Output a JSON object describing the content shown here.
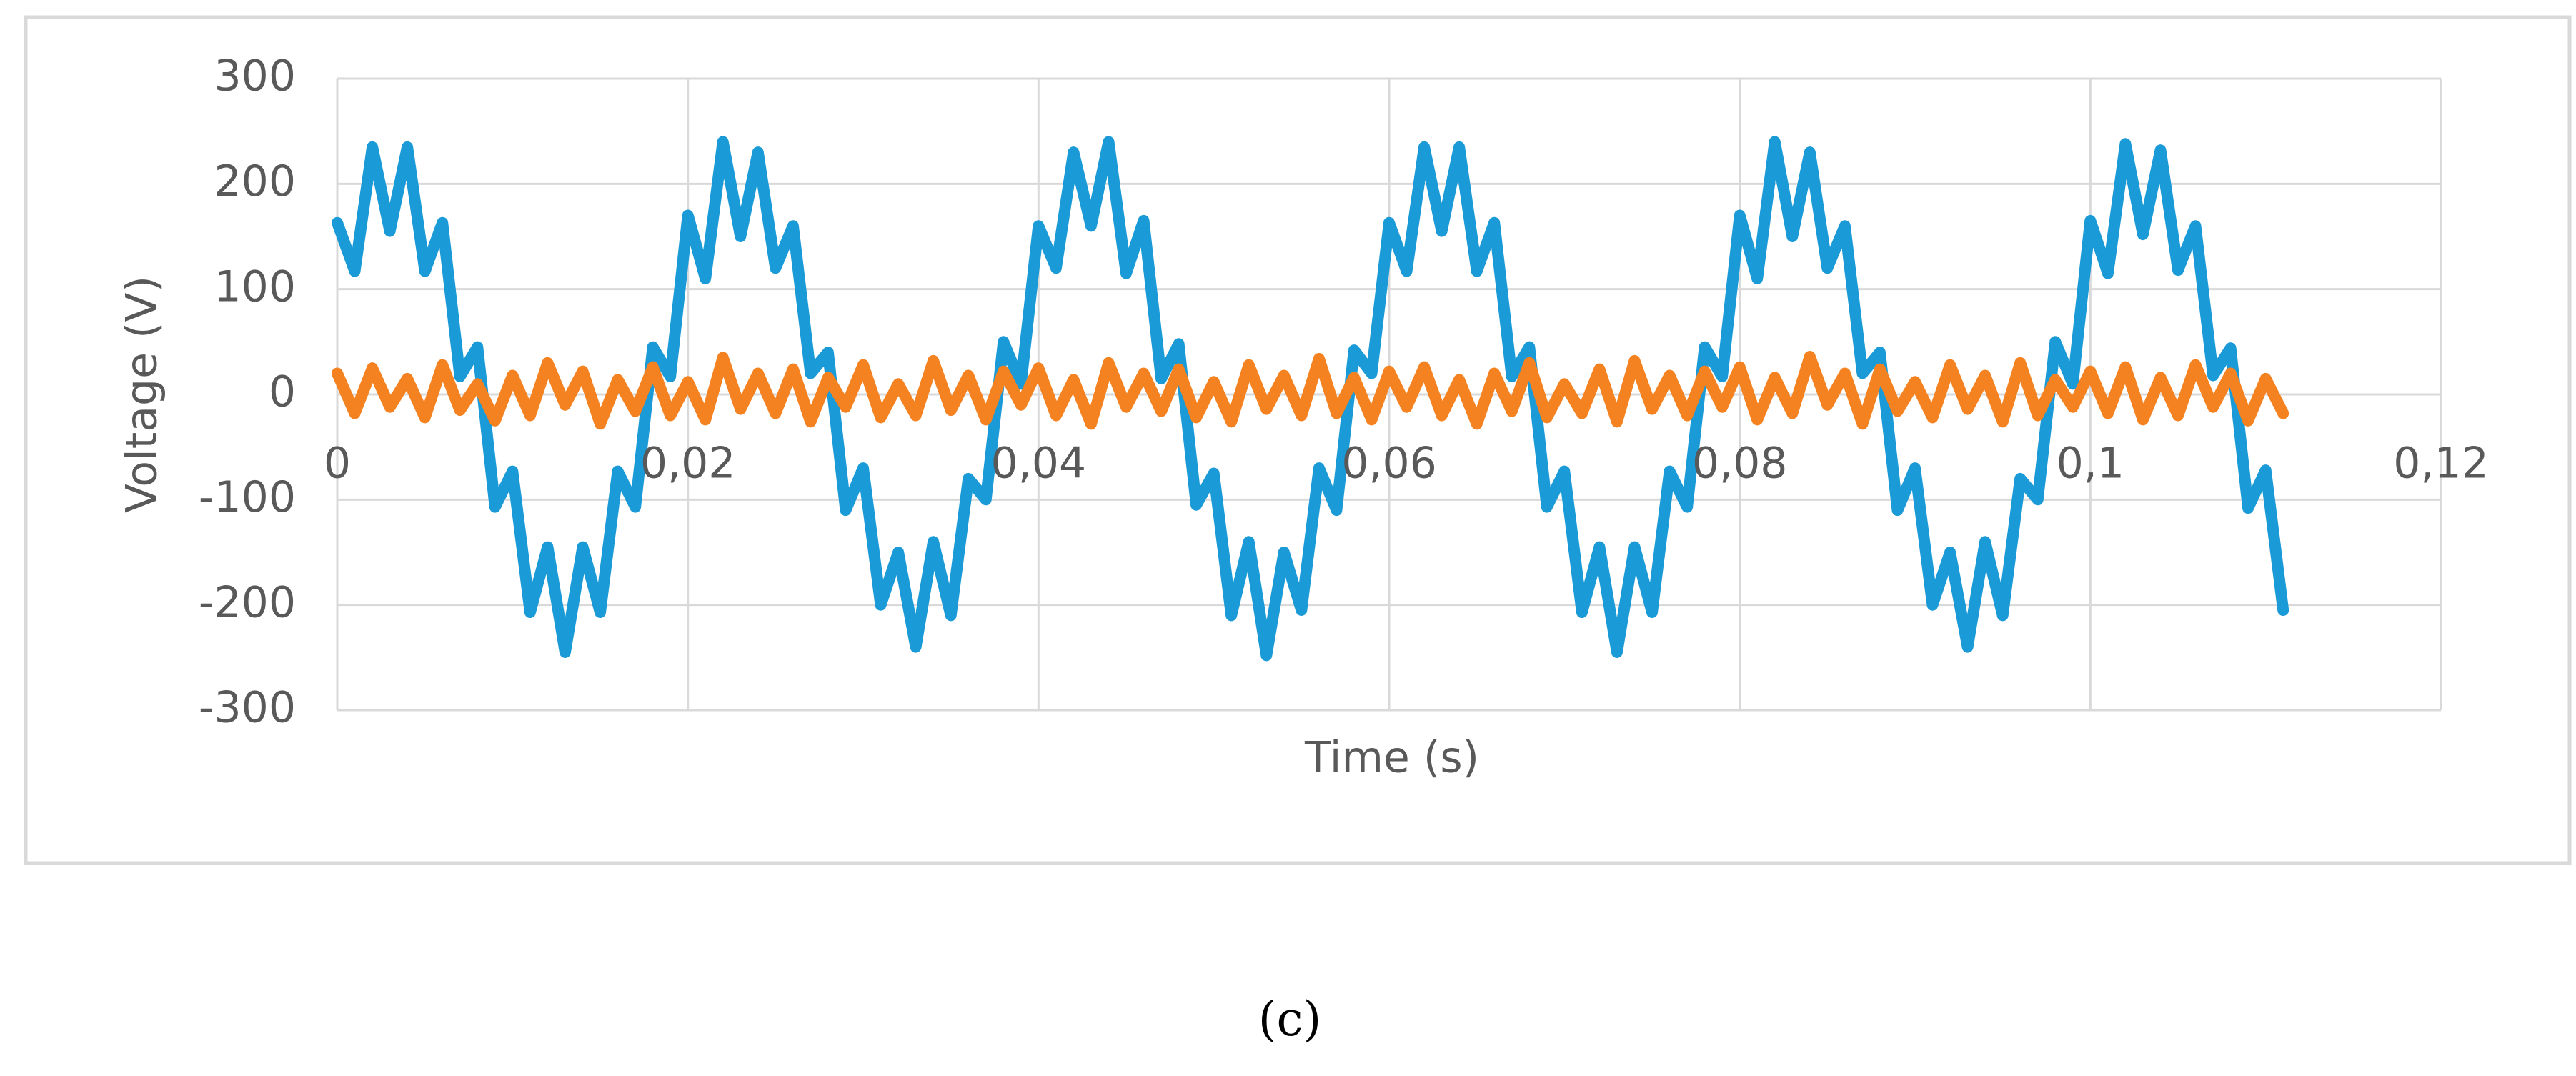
{
  "chart_data": {
    "type": "line",
    "x_label": "Time (s)",
    "y_label": "Voltage (V)",
    "x": [
      0,
      0.001,
      0.002,
      0.003,
      0.004,
      0.005,
      0.006,
      0.007,
      0.008,
      0.009,
      0.01,
      0.011,
      0.012,
      0.013,
      0.014,
      0.015,
      0.016,
      0.017,
      0.018,
      0.019,
      0.02,
      0.021,
      0.022,
      0.023,
      0.024,
      0.025,
      0.026,
      0.027,
      0.028,
      0.029,
      0.03,
      0.031,
      0.032,
      0.033,
      0.034,
      0.035,
      0.036,
      0.037,
      0.038,
      0.039,
      0.04,
      0.041,
      0.042,
      0.043,
      0.044,
      0.045,
      0.046,
      0.047,
      0.048,
      0.049,
      0.05,
      0.051,
      0.052,
      0.053,
      0.054,
      0.055,
      0.056,
      0.057,
      0.058,
      0.059,
      0.06,
      0.061,
      0.062,
      0.063,
      0.064,
      0.065,
      0.066,
      0.067,
      0.068,
      0.069,
      0.07,
      0.071,
      0.072,
      0.073,
      0.074,
      0.075,
      0.076,
      0.077,
      0.078,
      0.079,
      0.08,
      0.081,
      0.082,
      0.083,
      0.084,
      0.085,
      0.086,
      0.087,
      0.088,
      0.089,
      0.09,
      0.091,
      0.092,
      0.093,
      0.094,
      0.095,
      0.096,
      0.097,
      0.098,
      0.099,
      0.1,
      0.101,
      0.102,
      0.103,
      0.104,
      0.105,
      0.106,
      0.107,
      0.108,
      0.109,
      0.11,
      0.111
    ],
    "series": [
      {
        "color": "#1a9ad6",
        "values": [
          163,
          117,
          235,
          155,
          235,
          117,
          163,
          17,
          45,
          -107,
          -73,
          -207,
          -145,
          -245,
          -145,
          -207,
          -73,
          -107,
          45,
          17,
          170,
          110,
          240,
          150,
          230,
          120,
          160,
          20,
          40,
          -110,
          -70,
          -200,
          -150,
          -240,
          -140,
          -210,
          -80,
          -100,
          50,
          10,
          160,
          120,
          230,
          160,
          240,
          115,
          165,
          15,
          48,
          -105,
          -75,
          -210,
          -140,
          -248,
          -150,
          -205,
          -70,
          -110,
          42,
          20,
          163,
          117,
          235,
          155,
          235,
          117,
          163,
          17,
          45,
          -107,
          -73,
          -207,
          -145,
          -245,
          -145,
          -207,
          -73,
          -107,
          45,
          17,
          170,
          110,
          240,
          150,
          230,
          120,
          160,
          20,
          40,
          -110,
          -70,
          -200,
          -150,
          -240,
          -140,
          -210,
          -80,
          -100,
          50,
          10,
          165,
          115,
          238,
          152,
          232,
          118,
          160,
          18,
          44,
          -108,
          -72,
          -205
        ]
      },
      {
        "color": "#f58220",
        "values": [
          20,
          -18,
          25,
          -12,
          15,
          -22,
          28,
          -15,
          10,
          -25,
          18,
          -20,
          30,
          -10,
          22,
          -28,
          14,
          -16,
          26,
          -20,
          12,
          -24,
          35,
          -14,
          20,
          -18,
          24,
          -26,
          16,
          -12,
          28,
          -22,
          10,
          -20,
          32,
          -15,
          18,
          -24,
          22,
          -10,
          25,
          -20,
          14,
          -28,
          30,
          -12,
          20,
          -16,
          24,
          -22,
          12,
          -26,
          28,
          -14,
          18,
          -20,
          34,
          -18,
          16,
          -24,
          22,
          -12,
          26,
          -20,
          14,
          -28,
          20,
          -16,
          30,
          -22,
          10,
          -18,
          24,
          -26,
          32,
          -14,
          18,
          -20,
          22,
          -12,
          26,
          -24,
          16,
          -18,
          36,
          -10,
          20,
          -28,
          24,
          -16,
          12,
          -22,
          28,
          -14,
          18,
          -26,
          30,
          -20,
          14,
          -12,
          22,
          -18,
          26,
          -24,
          16,
          -20,
          28,
          -12,
          20,
          -25,
          15,
          -18
        ]
      }
    ],
    "xlim": [
      0,
      0.12
    ],
    "xticks": [
      0,
      {
        "value": 0.02,
        "label": "0,02"
      },
      {
        "value": 0.04,
        "label": "0,04"
      },
      {
        "value": 0.06,
        "label": "0,06"
      },
      {
        "value": 0.08,
        "label": "0,08"
      },
      {
        "value": 0.1,
        "label": "0,1"
      },
      {
        "value": 0.12,
        "label": "0,12"
      }
    ],
    "ylim": [
      -300,
      300
    ],
    "yticks": [
      -300,
      -200,
      -100,
      0,
      100,
      200,
      300
    ],
    "grid": true
  },
  "caption": "(c)"
}
